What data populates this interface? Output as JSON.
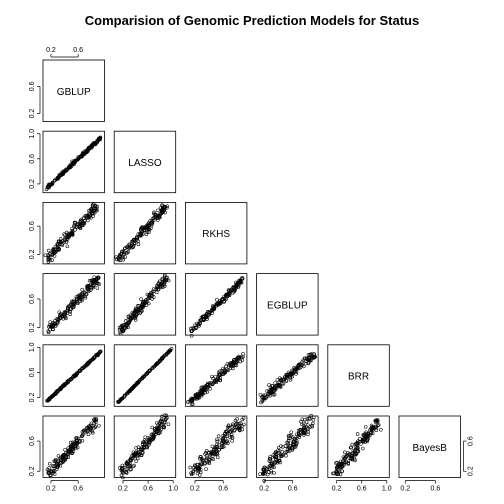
{
  "chart_data": {
    "type": "scatter",
    "title": "Comparision of Genomic Prediction Models for Status",
    "variables": [
      "GBLUP",
      "LASSO",
      "RKHS",
      "EGBLUP",
      "BRR",
      "BayesB"
    ],
    "layout": "lower-triangle scatterplot matrix",
    "ranges": {
      "GBLUP": [
        0.12,
        0.95
      ],
      "LASSO": [
        0.1,
        1.0
      ],
      "RKHS": [
        0.1,
        0.9
      ],
      "EGBLUP": [
        0.13,
        0.92
      ],
      "BRR": [
        0.1,
        1.0
      ],
      "BayesB": [
        0.15,
        0.9
      ]
    },
    "ticks": {
      "GBLUP": [
        "0.2",
        "0.6"
      ],
      "LASSO": [
        "0.2",
        "0.6",
        "1.0"
      ],
      "RKHS": [
        "0.2",
        "0.6"
      ],
      "EGBLUP": [
        "0.2",
        "0.6"
      ],
      "BRR": [
        "0.2",
        "0.6",
        "1.0"
      ],
      "BayesB": [
        "0.2",
        "0.6"
      ]
    },
    "tick_values": {
      "GBLUP": [
        0.2,
        0.6
      ],
      "LASSO": [
        0.2,
        0.6,
        1.0
      ],
      "RKHS": [
        0.2,
        0.6
      ],
      "EGBLUP": [
        0.2,
        0.6
      ],
      "BRR": [
        0.2,
        0.6,
        1.0
      ],
      "BayesB": [
        0.2,
        0.6
      ]
    },
    "pairs": [
      {
        "x": "GBLUP",
        "y": "LASSO",
        "spread": 0.012
      },
      {
        "x": "GBLUP",
        "y": "RKHS",
        "spread": 0.035
      },
      {
        "x": "LASSO",
        "y": "RKHS",
        "spread": 0.035
      },
      {
        "x": "GBLUP",
        "y": "EGBLUP",
        "spread": 0.035
      },
      {
        "x": "LASSO",
        "y": "EGBLUP",
        "spread": 0.035
      },
      {
        "x": "RKHS",
        "y": "EGBLUP",
        "spread": 0.02
      },
      {
        "x": "GBLUP",
        "y": "BRR",
        "spread": 0.006
      },
      {
        "x": "LASSO",
        "y": "BRR",
        "spread": 0.004
      },
      {
        "x": "RKHS",
        "y": "BRR",
        "spread": 0.03
      },
      {
        "x": "EGBLUP",
        "y": "BRR",
        "spread": 0.035
      },
      {
        "x": "GBLUP",
        "y": "BayesB",
        "spread": 0.04
      },
      {
        "x": "LASSO",
        "y": "BayesB",
        "spread": 0.045
      },
      {
        "x": "RKHS",
        "y": "BayesB",
        "spread": 0.05
      },
      {
        "x": "EGBLUP",
        "y": "BayesB",
        "spread": 0.055
      },
      {
        "x": "BRR",
        "y": "BayesB",
        "spread": 0.045
      }
    ],
    "grid": false,
    "legend": "none"
  }
}
